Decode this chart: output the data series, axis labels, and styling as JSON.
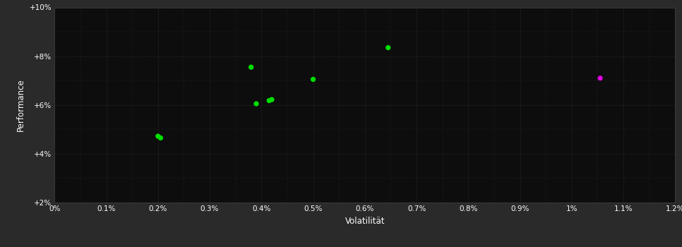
{
  "background_color": "#2a2a2a",
  "plot_bg_color": "#0d0d0d",
  "grid_color": "#3a3a3a",
  "green_points": [
    [
      0.2,
      4.72
    ],
    [
      0.205,
      4.65
    ],
    [
      0.38,
      7.55
    ],
    [
      0.39,
      6.05
    ],
    [
      0.415,
      6.18
    ],
    [
      0.42,
      6.22
    ],
    [
      0.5,
      7.05
    ],
    [
      0.645,
      8.35
    ]
  ],
  "magenta_points": [
    [
      1.055,
      7.1
    ]
  ],
  "xlabel": "Volatilität",
  "ylabel": "Performance",
  "xlim": [
    0.0,
    1.2
  ],
  "ylim": [
    2.0,
    10.0
  ],
  "xticks": [
    0.0,
    0.1,
    0.2,
    0.3,
    0.4,
    0.5,
    0.6,
    0.7,
    0.8,
    0.9,
    1.0,
    1.1,
    1.2
  ],
  "yticks": [
    2.0,
    4.0,
    6.0,
    8.0,
    10.0
  ],
  "ytick_labels": [
    "+2%",
    "+4%",
    "+6%",
    "+8%",
    "+10%"
  ],
  "xtick_labels": [
    "0%",
    "0.1%",
    "0.2%",
    "0.3%",
    "0.4%",
    "0.5%",
    "0.6%",
    "0.7%",
    "0.8%",
    "0.9%",
    "1%",
    "1.1%",
    "1.2%"
  ],
  "green_color": "#00dd00",
  "magenta_color": "#dd00dd",
  "tick_color": "#ffffff",
  "label_color": "#ffffff",
  "marker_size": 28,
  "figsize": [
    9.66,
    3.5
  ],
  "dpi": 100
}
